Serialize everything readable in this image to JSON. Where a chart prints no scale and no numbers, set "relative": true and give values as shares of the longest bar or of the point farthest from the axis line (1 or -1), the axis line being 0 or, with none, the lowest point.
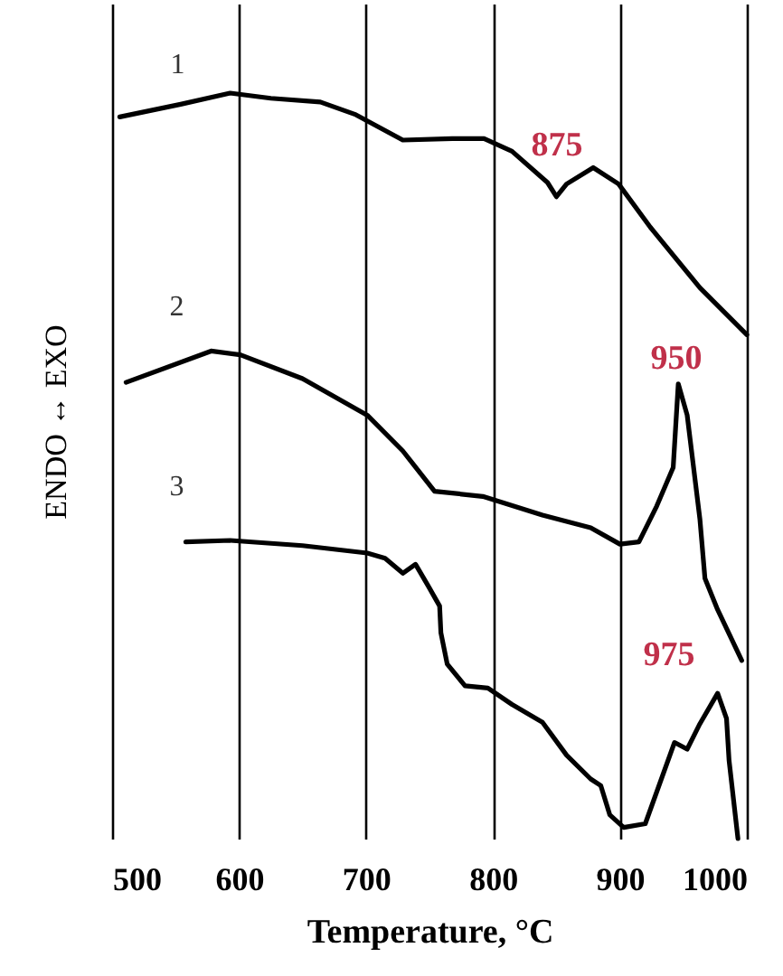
{
  "chart_data": {
    "type": "line",
    "relative": true,
    "xlabel": "Temperature, °C",
    "ylabel": "ENDO ↔ EXO",
    "xlim": [
      500,
      1000
    ],
    "xticks": [
      500,
      600,
      700,
      800,
      900,
      1000
    ],
    "grid": "x",
    "legend": false,
    "line_style": "solid",
    "marker": "none",
    "series": [
      {
        "name": "1",
        "color": "#000000",
        "x": [
          506,
          554,
          593,
          625,
          664,
          692,
          729,
          768,
          793,
          815,
          843,
          850,
          858,
          879,
          899,
          924,
          963,
          1000
        ],
        "values": [
          0.968,
          0.985,
          1.0,
          0.993,
          0.988,
          0.971,
          0.937,
          0.939,
          0.939,
          0.922,
          0.88,
          0.861,
          0.878,
          0.9,
          0.878,
          0.82,
          0.739,
          0.676
        ]
      },
      {
        "name": "2",
        "color": "#000000",
        "x": [
          511,
          578,
          601,
          650,
          701,
          729,
          754,
          792,
          839,
          877,
          900,
          915,
          929,
          942,
          946,
          953,
          963,
          967,
          977,
          996
        ],
        "values": [
          0.612,
          0.654,
          0.649,
          0.617,
          0.568,
          0.52,
          0.466,
          0.459,
          0.434,
          0.417,
          0.395,
          0.398,
          0.446,
          0.498,
          0.61,
          0.568,
          0.429,
          0.349,
          0.307,
          0.239
        ]
      },
      {
        "name": "3",
        "color": "#000000",
        "x": [
          558,
          593,
          650,
          701,
          715,
          729,
          739,
          749,
          758,
          759,
          764,
          778,
          796,
          815,
          839,
          858,
          877,
          885,
          892,
          903,
          920,
          943,
          953,
          963,
          977,
          984,
          986,
          993
        ],
        "values": [
          0.398,
          0.4,
          0.393,
          0.383,
          0.376,
          0.356,
          0.368,
          0.339,
          0.312,
          0.276,
          0.234,
          0.205,
          0.202,
          0.18,
          0.156,
          0.112,
          0.08,
          0.071,
          0.032,
          0.015,
          0.02,
          0.129,
          0.12,
          0.154,
          0.195,
          0.161,
          0.105,
          0.0
        ]
      }
    ],
    "annotations": [
      "875",
      "950",
      "975"
    ]
  }
}
